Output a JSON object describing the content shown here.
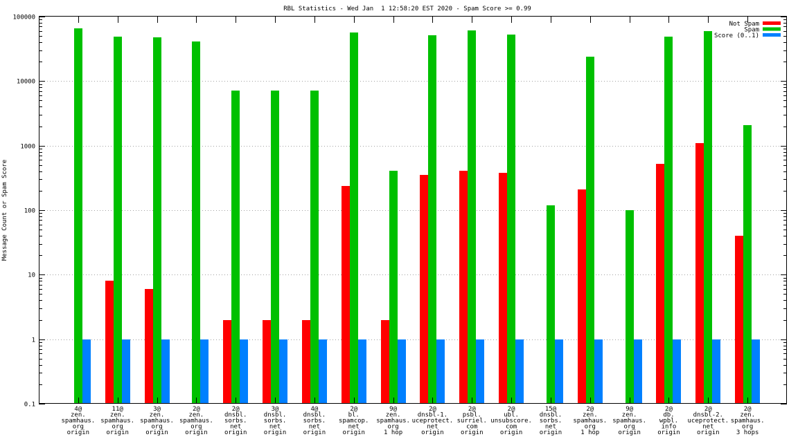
{
  "chart_data": {
    "type": "bar",
    "title": "RBL Statistics - Wed Jan  1 12:58:20 EST 2020 - Spam Score >= 0.99",
    "xlabel": "",
    "ylabel": "Message Count or Spam Score",
    "yscale": "log",
    "ylim": [
      0.1,
      100000
    ],
    "yticks": [
      {
        "value": 0.1,
        "label": "0.1"
      },
      {
        "value": 1,
        "label": "1"
      },
      {
        "value": 10,
        "label": "10"
      },
      {
        "value": 100,
        "label": "100"
      },
      {
        "value": 1000,
        "label": "1000"
      },
      {
        "value": 10000,
        "label": "10000"
      },
      {
        "value": 100000,
        "label": "100000"
      }
    ],
    "grid": true,
    "legend_position": "top-right",
    "categories": [
      [
        "4@",
        "zen.",
        "spamhaus.",
        "org",
        "origin"
      ],
      [
        "11@",
        "zen.",
        "spamhaus.",
        "org",
        "origin"
      ],
      [
        "3@",
        "zen.",
        "spamhaus.",
        "org",
        "origin"
      ],
      [
        "2@",
        "zen.",
        "spamhaus.",
        "org",
        "origin"
      ],
      [
        "2@",
        "dnsbl.",
        "sorbs.",
        "net",
        "origin"
      ],
      [
        "3@",
        "dnsbl.",
        "sorbs.",
        "net",
        "origin"
      ],
      [
        "4@",
        "dnsbl.",
        "sorbs.",
        "net",
        "origin"
      ],
      [
        "2@",
        "bl.",
        "spamcop.",
        "net",
        "origin"
      ],
      [
        "9@",
        "zen.",
        "spamhaus.",
        "org",
        "1 hop"
      ],
      [
        "2@",
        "dnsbl-1.",
        "uceprotect.",
        "net",
        "origin"
      ],
      [
        "2@",
        "psbl.",
        "surriel.",
        "com",
        "origin"
      ],
      [
        "2@",
        "ubl.",
        "unsubscore.",
        "com",
        "origin"
      ],
      [
        "15@",
        "dnsbl.",
        "sorbs.",
        "net",
        "origin"
      ],
      [
        "2@",
        "zen.",
        "spamhaus.",
        "org",
        "1 hop"
      ],
      [
        "9@",
        "zen.",
        "spamhaus.",
        "org",
        "origin"
      ],
      [
        "2@",
        "db.",
        "wpbl.",
        "info",
        "origin"
      ],
      [
        "2@",
        "dnsbl-2.",
        "uceprotect.",
        "net",
        "origin"
      ],
      [
        "2@",
        "zen.",
        "spamhaus.",
        "org",
        "3 hops"
      ]
    ],
    "series": [
      {
        "name": "Not Spam",
        "color": "#ff0000",
        "values": [
          null,
          8,
          6,
          null,
          2,
          2,
          2,
          240,
          2,
          350,
          410,
          375,
          null,
          210,
          null,
          520,
          1100,
          40
        ]
      },
      {
        "name": "Spam",
        "color": "#00c000",
        "values": [
          66000,
          49000,
          47500,
          41000,
          7100,
          7100,
          7100,
          57000,
          410,
          52000,
          61000,
          53000,
          118,
          24000,
          100,
          49000,
          59000,
          2100
        ]
      },
      {
        "name": "Score (0..1)",
        "color": "#0080ff",
        "values": [
          1,
          1,
          1,
          1,
          1,
          1,
          1,
          1,
          1,
          1,
          1,
          1,
          1,
          1,
          1,
          1,
          1,
          1
        ]
      }
    ]
  }
}
